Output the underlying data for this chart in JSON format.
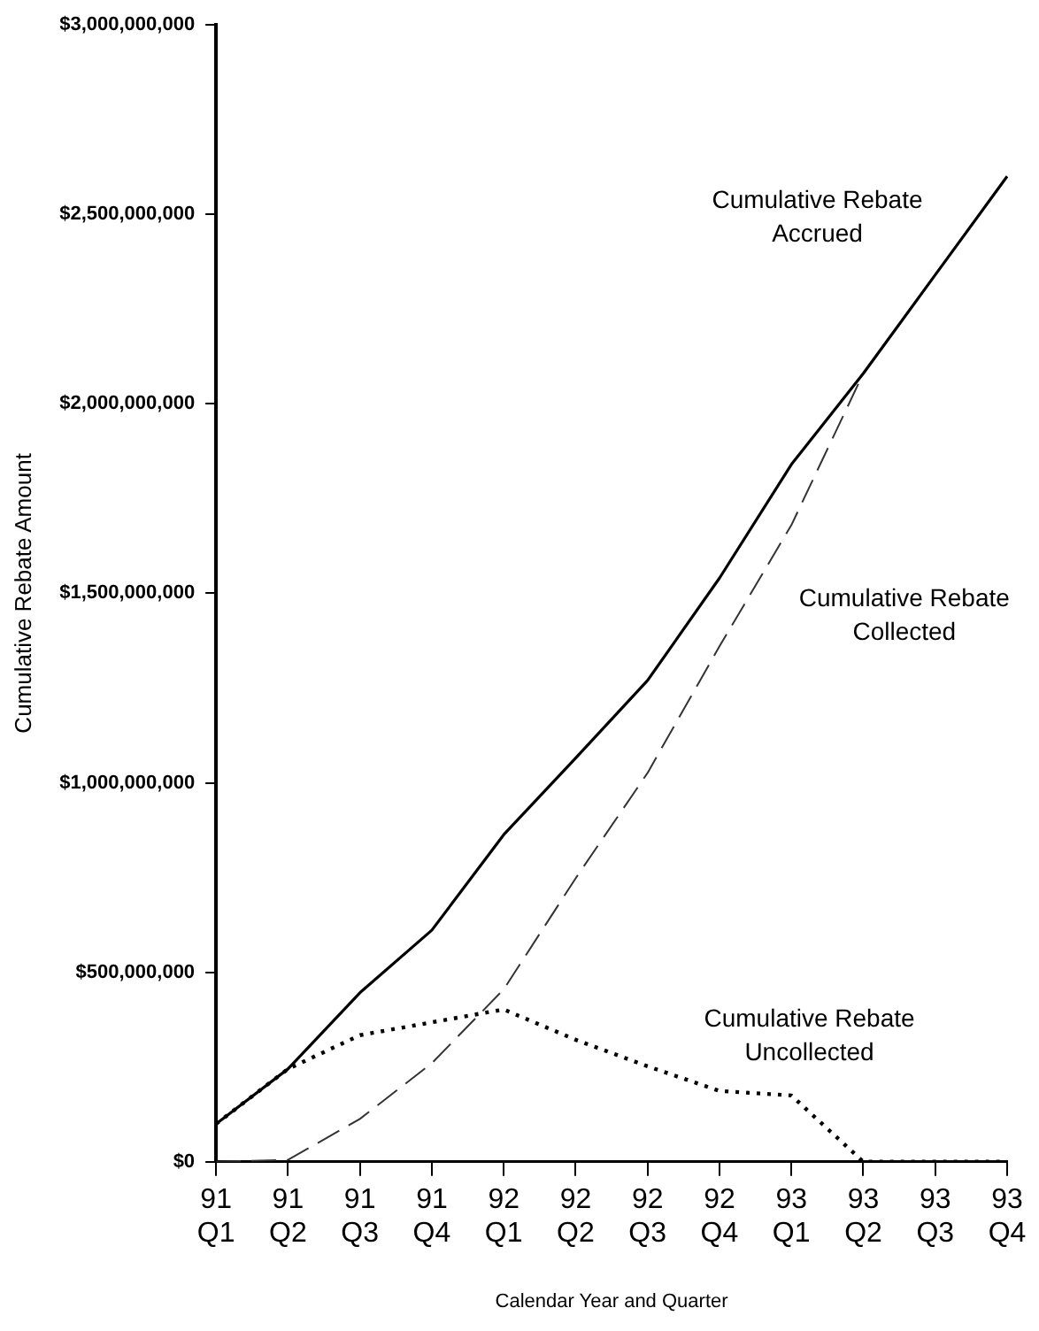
{
  "chart_data": {
    "type": "line",
    "xlabel": "Calendar Year and Quarter",
    "ylabel": "Cumulative Rebate Amount",
    "categories": [
      "91 Q1",
      "91 Q2",
      "91 Q3",
      "91 Q4",
      "92 Q1",
      "92 Q2",
      "92 Q3",
      "92 Q4",
      "93 Q1",
      "93 Q2",
      "93 Q3",
      "93 Q4"
    ],
    "ylim": [
      0,
      3000000000
    ],
    "yticks": [
      {
        "value": 0,
        "label": "$0"
      },
      {
        "value": 500000000,
        "label": "$500,000,000"
      },
      {
        "value": 1000000000,
        "label": "$1,000,000,000"
      },
      {
        "value": 1500000000,
        "label": "$1,500,000,000"
      },
      {
        "value": 2000000000,
        "label": "$2,000,000,000"
      },
      {
        "value": 2500000000,
        "label": "$2,500,000,000"
      },
      {
        "value": 3000000000,
        "label": "$3,000,000,000"
      }
    ],
    "grid": false,
    "legend": false,
    "marker": "none",
    "series": [
      {
        "name": "Cumulative Rebate Accrued",
        "color": "#000000",
        "line_style": "solid",
        "values": [
          100000000,
          245000000,
          446000000,
          611000000,
          863000000,
          1065000000,
          1270000000,
          1540000000,
          1840000000,
          2080000000,
          2340000000,
          2600000000
        ]
      },
      {
        "name": "Cumulative Rebate Collected",
        "color": "#333333",
        "line_style": "dashed",
        "values": [
          0,
          5000000,
          113000000,
          260000000,
          455000000,
          748000000,
          1026000000,
          1360000000,
          1680000000,
          2080000000,
          2340000000,
          2600000000
        ]
      },
      {
        "name": "Cumulative Rebate Uncollected",
        "color": "#000000",
        "line_style": "dotted",
        "values": [
          100000000,
          245000000,
          334000000,
          368000000,
          402000000,
          322000000,
          252000000,
          187000000,
          175000000,
          0,
          0,
          0
        ]
      }
    ]
  }
}
